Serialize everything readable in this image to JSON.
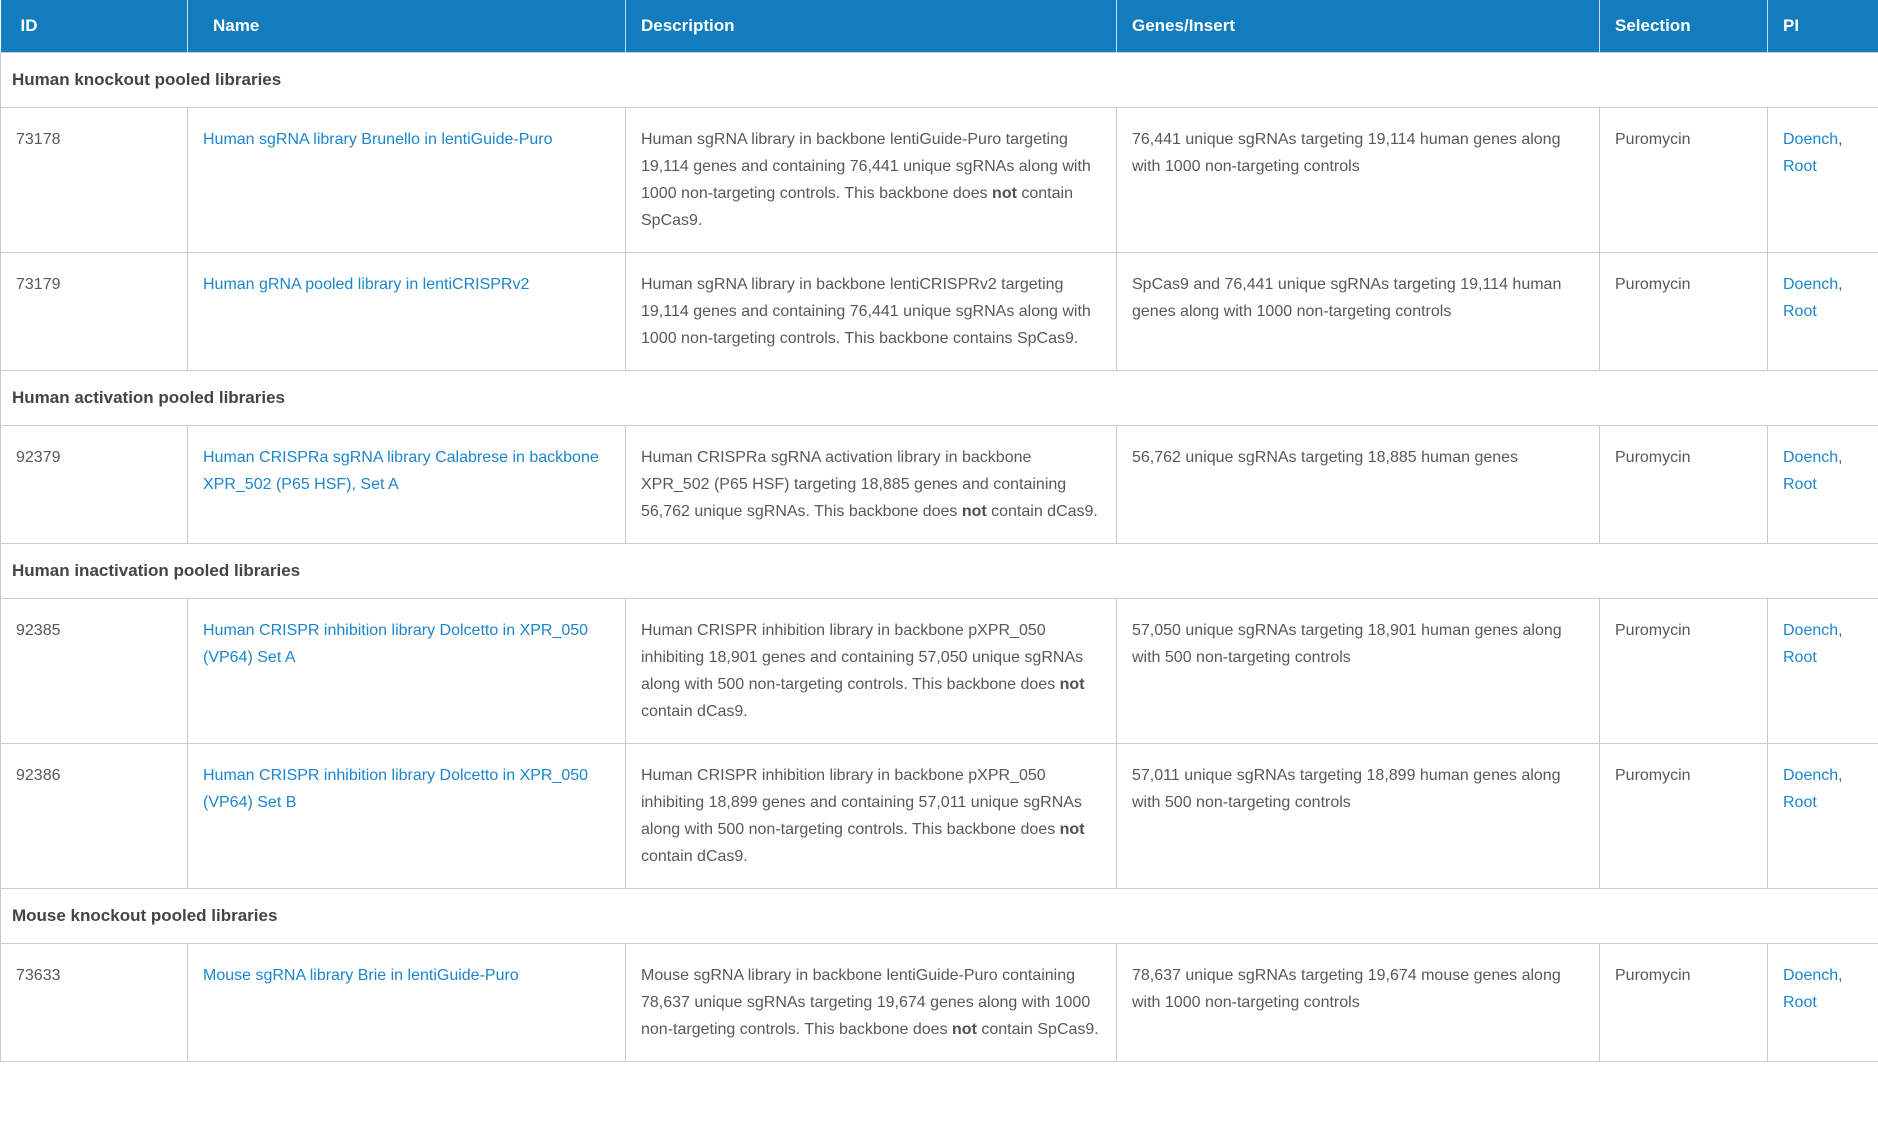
{
  "colors": {
    "header_background": "#127CBE",
    "header_text": "#FFFFFF",
    "link": "#1B86CE",
    "body_text": "#55595C",
    "section_text": "#414549",
    "border": "#CBCBCB"
  },
  "table": {
    "columns": [
      {
        "key": "id",
        "label": "ID"
      },
      {
        "key": "name",
        "label": "Name"
      },
      {
        "key": "description",
        "label": "Description"
      },
      {
        "key": "genes",
        "label": "Genes/Insert"
      },
      {
        "key": "selection",
        "label": "Selection"
      },
      {
        "key": "pi",
        "label": "PI"
      }
    ],
    "pi_separator": ",",
    "sections": [
      {
        "title": "Human knockout pooled libraries",
        "rows": [
          {
            "id": "73178",
            "name": "Human sgRNA library Brunello in lentiGuide-Puro",
            "description": [
              {
                "text": "Human sgRNA library in backbone lentiGuide-Puro targeting 19,114 genes and containing 76,441 unique sgRNAs along with 1000 non-targeting controls. This backbone does ",
                "bold": false
              },
              {
                "text": "not",
                "bold": true
              },
              {
                "text": " contain SpCas9.",
                "bold": false
              }
            ],
            "genes": "76,441 unique sgRNAs targeting 19,114 human genes along with 1000 non-targeting controls",
            "selection": "Puromycin",
            "pi": [
              "Doench",
              "Root"
            ]
          },
          {
            "id": "73179",
            "name": "Human gRNA pooled library in lentiCRISPRv2",
            "description": [
              {
                "text": "Human sgRNA library in backbone lentiCRISPRv2 targeting 19,114 genes and containing 76,441 unique sgRNAs along with 1000 non-targeting controls. This backbone contains SpCas9.",
                "bold": false
              }
            ],
            "genes": "SpCas9 and 76,441 unique sgRNAs targeting 19,114 human genes along with 1000 non-targeting controls",
            "selection": "Puromycin",
            "pi": [
              "Doench",
              "Root"
            ]
          }
        ]
      },
      {
        "title": "Human activation pooled libraries",
        "rows": [
          {
            "id": "92379",
            "name": "Human CRISPRa sgRNA library Calabrese in backbone XPR_502 (P65 HSF), Set A",
            "description": [
              {
                "text": "Human CRISPRa sgRNA activation library in backbone XPR_502 (P65 HSF) targeting 18,885 genes and containing 56,762 unique sgRNAs. This backbone does ",
                "bold": false
              },
              {
                "text": "not",
                "bold": true
              },
              {
                "text": " contain dCas9.",
                "bold": false
              }
            ],
            "genes": "56,762 unique sgRNAs targeting 18,885 human genes",
            "selection": "Puromycin",
            "pi": [
              "Doench",
              "Root"
            ]
          }
        ]
      },
      {
        "title": "Human inactivation pooled libraries",
        "rows": [
          {
            "id": "92385",
            "name": "Human CRISPR inhibition library Dolcetto in XPR_050 (VP64) Set A",
            "description": [
              {
                "text": "Human CRISPR inhibition library in backbone pXPR_050 inhibiting 18,901 genes and containing 57,050 unique sgRNAs along with 500 non-targeting controls. This backbone does ",
                "bold": false
              },
              {
                "text": "not",
                "bold": true
              },
              {
                "text": " contain dCas9.",
                "bold": false
              }
            ],
            "genes": "57,050 unique sgRNAs targeting 18,901 human genes along with 500 non-targeting controls",
            "selection": "Puromycin",
            "pi": [
              "Doench",
              "Root"
            ]
          },
          {
            "id": "92386",
            "name": "Human CRISPR inhibition library Dolcetto in XPR_050 (VP64) Set B",
            "description": [
              {
                "text": "Human CRISPR inhibition library in backbone pXPR_050 inhibiting 18,899 genes and containing 57,011 unique sgRNAs along with 500 non-targeting controls. This backbone does ",
                "bold": false
              },
              {
                "text": "not",
                "bold": true
              },
              {
                "text": " contain dCas9.",
                "bold": false
              }
            ],
            "genes": "57,011 unique sgRNAs targeting 18,899 human genes along with 500 non-targeting controls",
            "selection": "Puromycin",
            "pi": [
              "Doench",
              "Root"
            ]
          }
        ]
      },
      {
        "title": "Mouse knockout pooled libraries",
        "rows": [
          {
            "id": "73633",
            "name": "Mouse sgRNA library Brie in lentiGuide-Puro",
            "description": [
              {
                "text": "Mouse sgRNA library in backbone lentiGuide-Puro containing 78,637 unique sgRNAs targeting 19,674 genes along with 1000 non-targeting controls. This backbone does ",
                "bold": false
              },
              {
                "text": "not",
                "bold": true
              },
              {
                "text": " contain SpCas9.",
                "bold": false
              }
            ],
            "genes": "78,637 unique sgRNAs targeting 19,674 mouse genes along with 1000 non-targeting controls",
            "selection": "Puromycin",
            "pi": [
              "Doench",
              "Root"
            ]
          }
        ]
      }
    ]
  }
}
